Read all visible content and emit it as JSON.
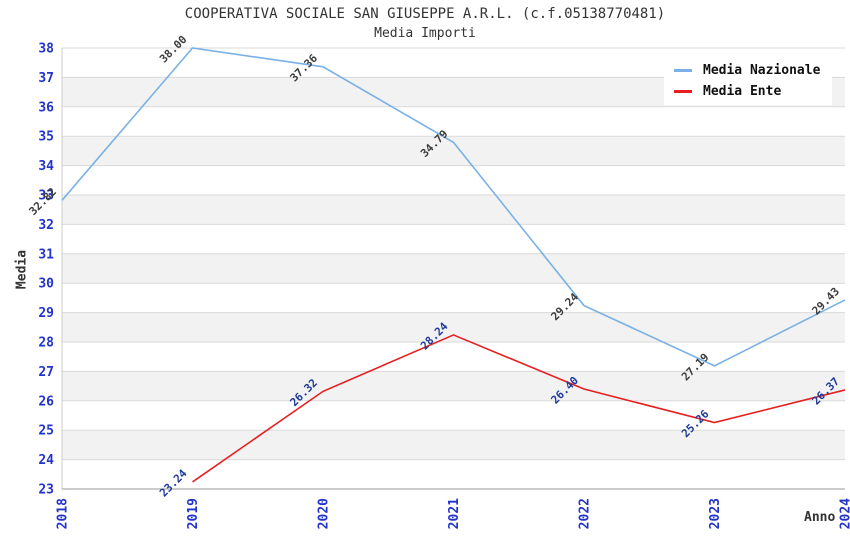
{
  "header": {
    "title": "COOPERATIVA SOCIALE SAN GIUSEPPE A.R.L. (c.f.05138770481)",
    "subtitle": "Media Importi"
  },
  "chart_data": {
    "type": "line",
    "title": "COOPERATIVA SOCIALE SAN GIUSEPPE A.R.L. (c.f.05138770481)",
    "subtitle": "Media Importi",
    "xlabel": "Anno",
    "ylabel": "Media",
    "categories": [
      "2018",
      "2019",
      "2020",
      "2021",
      "2022",
      "2023",
      "2024"
    ],
    "series": [
      {
        "name": "Media Nazionale",
        "color": "#79b1e6",
        "label_color": "#3c3c3c",
        "values": [
          32.82,
          38.0,
          37.36,
          34.79,
          29.24,
          27.19,
          29.43
        ]
      },
      {
        "name": "Media Ente",
        "color": "#e62020",
        "label_color": "#1f3a99",
        "values": [
          null,
          23.24,
          26.32,
          28.24,
          26.4,
          25.26,
          26.37
        ]
      }
    ],
    "ylim": [
      23,
      38
    ],
    "ytick_step": 1,
    "grid": true,
    "legend_position": "top-right",
    "colors": {
      "tick": "#2233cc",
      "band": "#f2f2f2",
      "grid": "#d9d9d9",
      "left_spine": "#cccccc",
      "bottom_spine": "#999999",
      "axis_text": "#333333"
    }
  }
}
